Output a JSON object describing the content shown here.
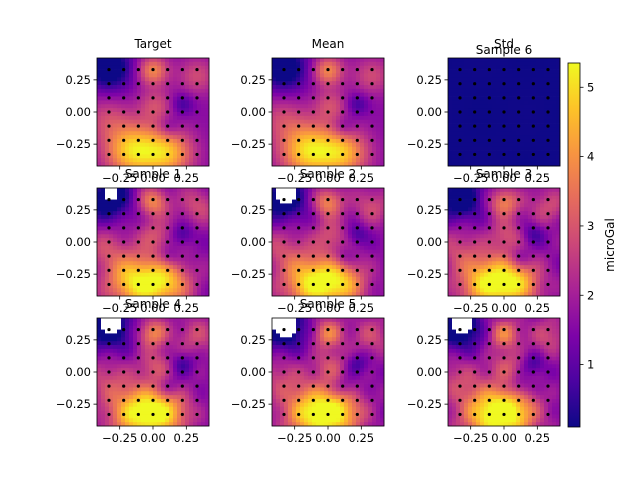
{
  "chart_data": {
    "type": "heatmap",
    "colormap": "plasma",
    "x_ticks": [
      "−0.25",
      "0.00",
      "0.25"
    ],
    "y_ticks": [
      "0.25",
      "0.00",
      "−0.25"
    ],
    "x_tick_values": [
      -0.25,
      0.0,
      0.25
    ],
    "y_tick_values": [
      0.25,
      0.0,
      -0.25
    ],
    "xlim": [
      -0.42,
      0.42
    ],
    "ylim": [
      -0.42,
      0.42
    ],
    "station_grid": {
      "x": [
        -0.33,
        -0.22,
        -0.11,
        0.0,
        0.11,
        0.22,
        0.33
      ],
      "y": [
        0.33,
        0.22,
        0.11,
        0.0,
        -0.11,
        -0.22,
        -0.33
      ]
    },
    "panels": [
      {
        "title": "Target",
        "field": "target"
      },
      {
        "title": "Mean",
        "field": "mean"
      },
      {
        "title": "Std",
        "title2": "Sample 6",
        "field": "std"
      },
      {
        "title": "Sample 1",
        "field": "sample",
        "mask": "small"
      },
      {
        "title": "Sample 2",
        "field": "sample",
        "mask": "medium"
      },
      {
        "title": "Sample 3",
        "field": "sample",
        "mask": "none"
      },
      {
        "title": "Sample 4",
        "field": "sample",
        "mask": "medium"
      },
      {
        "title": "Sample 5",
        "field": "sample",
        "mask": "large"
      },
      {
        "title": "",
        "field": "sample",
        "mask": "medium"
      }
    ],
    "colorbar": {
      "label": "microGal",
      "range": [
        0.1,
        5.35
      ],
      "ticks": [
        "1",
        "2",
        "3",
        "4",
        "5"
      ],
      "tick_values": [
        1,
        2,
        3,
        4,
        5
      ]
    }
  }
}
